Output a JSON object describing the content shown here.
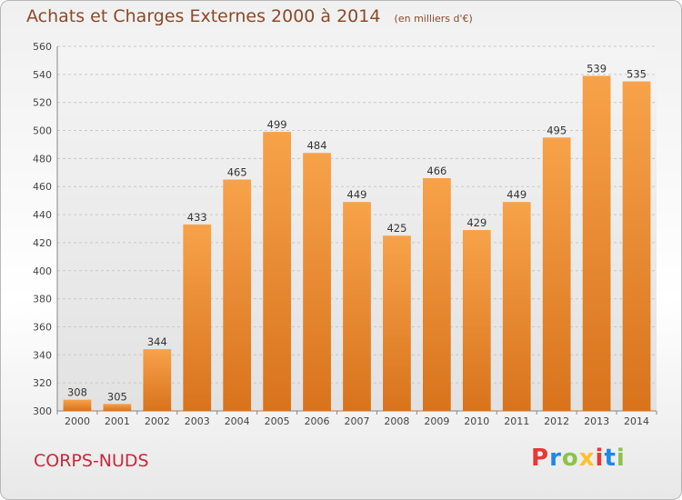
{
  "chart_data": {
    "type": "bar",
    "title": "Achats et Charges Externes 2000 à 2014",
    "subtitle": "(en milliers d'€)",
    "categories": [
      "2000",
      "2001",
      "2002",
      "2003",
      "2004",
      "2005",
      "2006",
      "2007",
      "2008",
      "2009",
      "2010",
      "2011",
      "2012",
      "2013",
      "2014"
    ],
    "values": [
      308,
      305,
      344,
      433,
      465,
      499,
      484,
      449,
      425,
      466,
      429,
      449,
      495,
      539,
      535
    ],
    "ylim": [
      300,
      560
    ],
    "yticks": [
      300,
      320,
      340,
      360,
      380,
      400,
      420,
      440,
      460,
      480,
      500,
      520,
      540,
      560
    ],
    "grid": true,
    "bar_color": "#f0902c",
    "xlabel": "",
    "ylabel": ""
  },
  "footer": {
    "city": "CORPS-NUDS",
    "logo": "Proxiti"
  },
  "colors": {
    "title": "#8a4a2a",
    "city": "#c8283c",
    "logo_letters": [
      "#e53935",
      "#1e88e5",
      "#8bc34a",
      "#fbc02d",
      "#e53935",
      "#1e88e5",
      "#8bc34a"
    ]
  }
}
